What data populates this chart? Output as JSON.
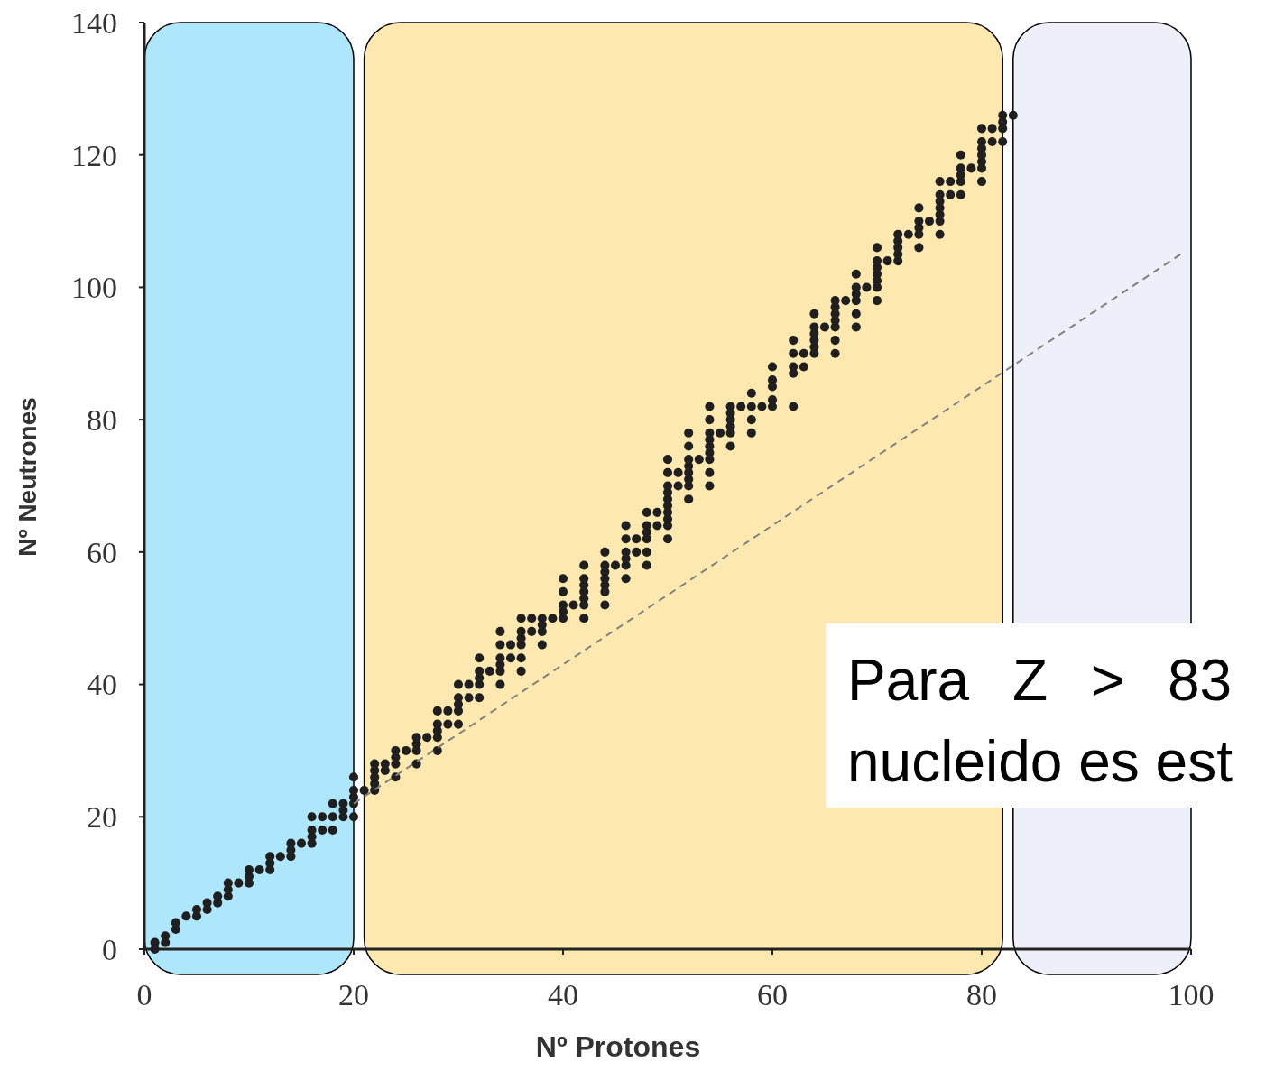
{
  "chart_data": {
    "type": "scatter",
    "xlabel": "Nº Protones",
    "ylabel": "Nº Neutrones",
    "xlim": [
      0,
      100
    ],
    "xticks": [
      0,
      20,
      40,
      60,
      80,
      100
    ],
    "ylim": [
      0,
      140
    ],
    "yticks": [
      0,
      20,
      40,
      60,
      80,
      100,
      120,
      140
    ],
    "grid": false,
    "bands": [
      {
        "axis": "x",
        "from": 0,
        "to": 20,
        "color": "#aee6fb"
      },
      {
        "axis": "x",
        "from": 21,
        "to": 82,
        "color": "#fde8b0"
      },
      {
        "axis": "x",
        "from": 83,
        "to": 100,
        "color": "#efeff9"
      }
    ],
    "annotations": [
      "Para Z > 83",
      "nucleido es est"
    ],
    "series": [
      {
        "marker": "circle",
        "color": "#1f1f1f",
        "x": [
          1,
          1,
          2,
          2,
          3,
          3,
          4,
          5,
          5,
          6,
          6,
          7,
          7,
          8,
          8,
          8,
          9,
          10,
          10,
          10,
          11,
          12,
          12,
          12,
          13,
          14,
          14,
          14,
          15,
          16,
          16,
          16,
          16,
          17,
          17,
          18,
          18,
          18,
          19,
          19,
          19,
          20,
          20,
          20,
          20,
          20,
          21,
          22,
          22,
          22,
          22,
          22,
          23,
          23,
          24,
          24,
          24,
          24,
          25,
          26,
          26,
          26,
          26,
          27,
          28,
          28,
          28,
          28,
          28,
          29,
          29,
          30,
          30,
          30,
          30,
          30,
          31,
          31,
          32,
          32,
          32,
          32,
          32,
          33,
          34,
          34,
          34,
          34,
          34,
          34,
          35,
          35,
          36,
          36,
          36,
          36,
          36,
          36,
          37,
          37,
          38,
          38,
          38,
          38,
          39,
          40,
          40,
          40,
          40,
          40,
          41,
          42,
          42,
          42,
          42,
          42,
          42,
          42,
          44,
          44,
          44,
          44,
          44,
          44,
          44,
          45,
          46,
          46,
          46,
          46,
          46,
          46,
          47,
          47,
          48,
          48,
          48,
          48,
          48,
          48,
          49,
          49,
          50,
          50,
          50,
          50,
          50,
          50,
          50,
          50,
          50,
          50,
          51,
          51,
          52,
          52,
          52,
          52,
          52,
          52,
          52,
          52,
          53,
          54,
          54,
          54,
          54,
          54,
          54,
          54,
          54,
          54,
          55,
          56,
          56,
          56,
          56,
          56,
          56,
          57,
          58,
          58,
          58,
          58,
          59,
          60,
          60,
          60,
          60,
          60,
          62,
          62,
          62,
          62,
          62,
          63,
          63,
          64,
          64,
          64,
          64,
          64,
          64,
          65,
          66,
          66,
          66,
          66,
          66,
          66,
          66,
          67,
          68,
          68,
          68,
          68,
          68,
          68,
          69,
          70,
          70,
          70,
          70,
          70,
          70,
          70,
          71,
          72,
          72,
          72,
          72,
          72,
          73,
          74,
          74,
          74,
          74,
          74,
          75,
          76,
          76,
          76,
          76,
          76,
          76,
          76,
          77,
          77,
          78,
          78,
          78,
          78,
          78,
          79,
          80,
          80,
          80,
          80,
          80,
          80,
          80,
          81,
          81,
          82,
          82,
          82,
          82,
          83
        ],
        "values": [
          0,
          1,
          1,
          2,
          3,
          4,
          5,
          5,
          6,
          6,
          7,
          7,
          8,
          8,
          9,
          10,
          10,
          10,
          11,
          12,
          12,
          12,
          13,
          14,
          14,
          14,
          15,
          16,
          16,
          16,
          17,
          18,
          20,
          18,
          20,
          18,
          20,
          22,
          20,
          21,
          22,
          20,
          22,
          23,
          24,
          26,
          24,
          24,
          25,
          26,
          27,
          28,
          27,
          28,
          26,
          28,
          29,
          30,
          30,
          28,
          30,
          31,
          32,
          32,
          30,
          32,
          33,
          34,
          36,
          34,
          36,
          34,
          36,
          37,
          38,
          40,
          38,
          40,
          38,
          40,
          41,
          42,
          44,
          42,
          40,
          42,
          43,
          44,
          46,
          48,
          44,
          46,
          42,
          44,
          46,
          47,
          48,
          50,
          48,
          50,
          46,
          48,
          49,
          50,
          50,
          50,
          51,
          52,
          54,
          56,
          52,
          50,
          52,
          53,
          54,
          55,
          56,
          58,
          52,
          54,
          55,
          56,
          57,
          58,
          60,
          58,
          56,
          58,
          59,
          60,
          62,
          64,
          60,
          62,
          58,
          60,
          62,
          63,
          64,
          66,
          64,
          66,
          62,
          64,
          65,
          66,
          67,
          68,
          69,
          70,
          72,
          74,
          70,
          72,
          68,
          70,
          71,
          72,
          73,
          74,
          76,
          78,
          74,
          70,
          72,
          74,
          75,
          76,
          77,
          78,
          80,
          82,
          78,
          76,
          78,
          79,
          80,
          81,
          82,
          82,
          78,
          80,
          82,
          84,
          82,
          82,
          83,
          85,
          86,
          88,
          82,
          87,
          88,
          90,
          92,
          88,
          90,
          90,
          91,
          92,
          93,
          94,
          96,
          94,
          90,
          92,
          94,
          95,
          96,
          97,
          98,
          98,
          94,
          96,
          98,
          99,
          100,
          102,
          100,
          98,
          100,
          101,
          102,
          103,
          104,
          106,
          104,
          104,
          105,
          106,
          107,
          108,
          108,
          106,
          108,
          109,
          110,
          112,
          110,
          108,
          110,
          111,
          112,
          113,
          114,
          116,
          114,
          116,
          114,
          116,
          117,
          118,
          120,
          118,
          116,
          118,
          119,
          120,
          121,
          122,
          124,
          122,
          124,
          122,
          124,
          125,
          126,
          126
        ]
      },
      {
        "type": "line",
        "color": "#7f7f7f",
        "line_style": "dashed",
        "x": [
          20,
          99
        ],
        "values": [
          22,
          105
        ]
      }
    ]
  }
}
